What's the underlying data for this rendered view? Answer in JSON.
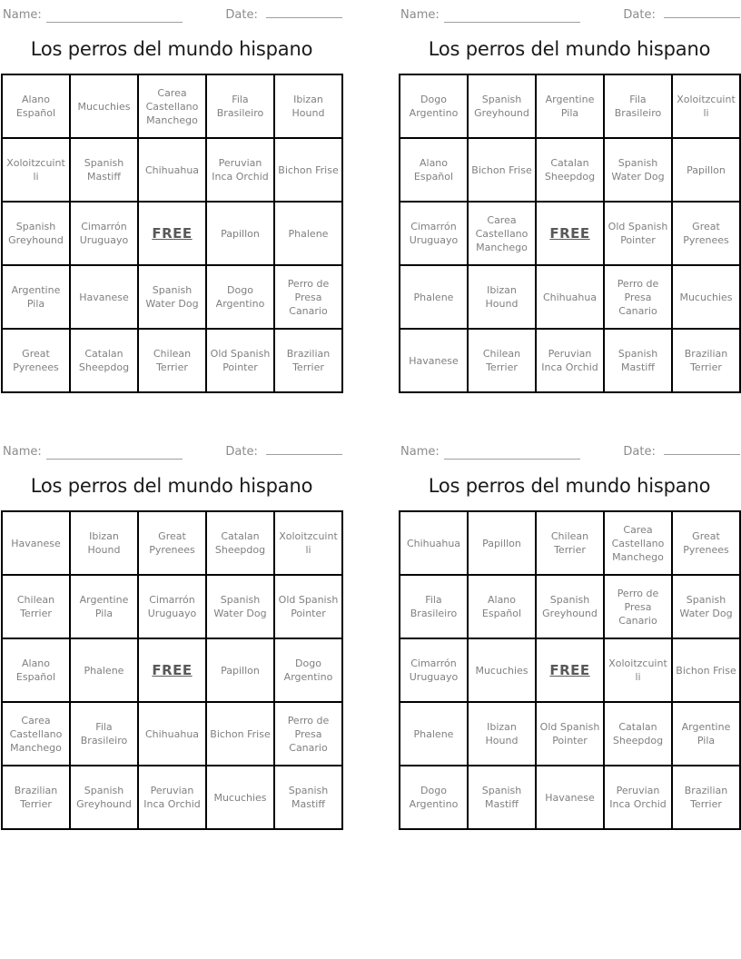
{
  "worksheet": {
    "name_label": "Name:",
    "date_label": "Date:",
    "title": "Los perros del mundo hispano",
    "free_label": "FREE",
    "colors": {
      "cell_text": "#808080",
      "title_text": "#1a1a1a",
      "label_text": "#8c8c8c",
      "grid_border": "#000000",
      "background": "#ffffff"
    }
  },
  "cards": [
    {
      "grid": [
        [
          "Alano Español",
          "Mucuchies",
          "Carea Castellano Manchego",
          "Fila Brasileiro",
          "Ibizan Hound"
        ],
        [
          "Xoloitzcuintli",
          "Spanish Mastiff",
          "Chihuahua",
          "Peruvian Inca Orchid",
          "Bichon Frise"
        ],
        [
          "Spanish Greyhound",
          "Cimarrón Uruguayo",
          "FREE",
          "Papillon",
          "Phalene"
        ],
        [
          "Argentine Pila",
          "Havanese",
          "Spanish Water Dog",
          "Dogo Argentino",
          "Perro de Presa Canario"
        ],
        [
          "Great Pyrenees",
          "Catalan Sheepdog",
          "Chilean Terrier",
          "Old Spanish Pointer",
          "Brazilian Terrier"
        ]
      ]
    },
    {
      "grid": [
        [
          "Dogo Argentino",
          "Spanish Greyhound",
          "Argentine Pila",
          "Fila Brasileiro",
          "Xoloitzcuintli"
        ],
        [
          "Alano Español",
          "Bichon Frise",
          "Catalan Sheepdog",
          "Spanish Water Dog",
          "Papillon"
        ],
        [
          "Cimarrón Uruguayo",
          "Carea Castellano Manchego",
          "FREE",
          "Old Spanish Pointer",
          "Great Pyrenees"
        ],
        [
          "Phalene",
          "Ibizan Hound",
          "Chihuahua",
          "Perro de Presa Canario",
          "Mucuchies"
        ],
        [
          "Havanese",
          "Chilean Terrier",
          "Peruvian Inca Orchid",
          "Spanish Mastiff",
          "Brazilian Terrier"
        ]
      ]
    },
    {
      "grid": [
        [
          "Havanese",
          "Ibizan Hound",
          "Great Pyrenees",
          "Catalan Sheepdog",
          "Xoloitzcuintli"
        ],
        [
          "Chilean Terrier",
          "Argentine Pila",
          "Cimarrón Uruguayo",
          "Spanish Water Dog",
          "Old Spanish Pointer"
        ],
        [
          "Alano Español",
          "Phalene",
          "FREE",
          "Papillon",
          "Dogo Argentino"
        ],
        [
          "Carea Castellano Manchego",
          "Fila Brasileiro",
          "Chihuahua",
          "Bichon Frise",
          "Perro de Presa Canario"
        ],
        [
          "Brazilian Terrier",
          "Spanish Greyhound",
          "Peruvian Inca Orchid",
          "Mucuchies",
          "Spanish Mastiff"
        ]
      ]
    },
    {
      "grid": [
        [
          "Chihuahua",
          "Papillon",
          "Chilean Terrier",
          "Carea Castellano Manchego",
          "Great Pyrenees"
        ],
        [
          "Fila Brasileiro",
          "Alano Español",
          "Spanish Greyhound",
          "Perro de Presa Canario",
          "Spanish Water Dog"
        ],
        [
          "Cimarrón Uruguayo",
          "Mucuchies",
          "FREE",
          "Xoloitzcuintli",
          "Bichon Frise"
        ],
        [
          "Phalene",
          "Ibizan Hound",
          "Old Spanish Pointer",
          "Catalan Sheepdog",
          "Argentine Pila"
        ],
        [
          "Dogo Argentino",
          "Spanish Mastiff",
          "Havanese",
          "Peruvian Inca Orchid",
          "Brazilian Terrier"
        ]
      ]
    }
  ]
}
